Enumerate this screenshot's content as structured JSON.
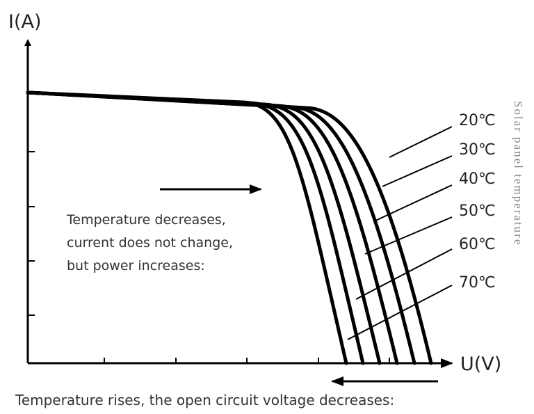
{
  "y_axis_label": "I(A)",
  "x_axis_label": "U(V)",
  "temperatures": [
    "20℃",
    "30℃",
    "40℃",
    "50℃",
    "60℃",
    "70℃"
  ],
  "side_label": "Solar panel temperature",
  "note_lines": [
    "Temperature decreases,",
    "current does not change,",
    "but power increases:"
  ],
  "bottom_note": "Temperature rises, the open circuit voltage decreases:"
}
